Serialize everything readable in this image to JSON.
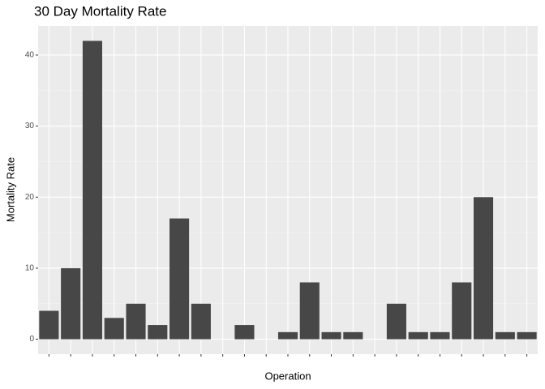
{
  "chart_data": {
    "type": "bar",
    "title": "30 Day Mortality Rate",
    "x_label": "Operation",
    "y_label": "Mortality Rate",
    "categories": [
      null,
      null,
      null,
      null,
      null,
      null,
      null,
      null,
      null,
      null,
      null,
      null,
      null,
      null,
      null,
      null,
      null,
      null,
      null,
      null,
      null,
      null,
      null
    ],
    "values": [
      4,
      10,
      42,
      3,
      5,
      2,
      17,
      5,
      0,
      2,
      0,
      1,
      8,
      1,
      1,
      0,
      5,
      1,
      1,
      8,
      20,
      1,
      1
    ],
    "color": "#474747",
    "ylim": [
      -2.1,
      44.1
    ],
    "yticks": [
      0,
      10,
      20,
      30,
      40
    ],
    "grid": true
  }
}
